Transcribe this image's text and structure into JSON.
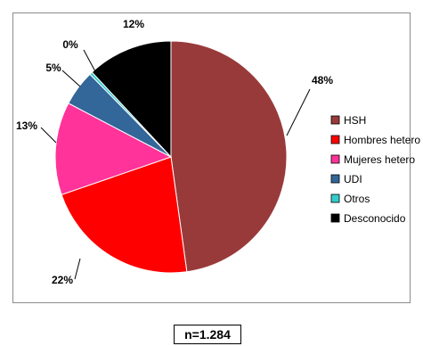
{
  "chart_data": {
    "type": "pie",
    "title": "",
    "slices": [
      {
        "name": "HSH",
        "value": 48,
        "label": "48%",
        "color": "#993a3a"
      },
      {
        "name": "Hombres hetero",
        "value": 22,
        "label": "22%",
        "color": "#ff0000"
      },
      {
        "name": "Mujeres hetero",
        "value": 13,
        "label": "13%",
        "color": "#ff3399"
      },
      {
        "name": "UDI",
        "value": 5,
        "label": "5%",
        "color": "#336699"
      },
      {
        "name": "Otros",
        "value": 0.4,
        "label": "0%",
        "color": "#33cccc"
      },
      {
        "name": "Desconocido",
        "value": 12,
        "label": "12%",
        "color": "#000000"
      }
    ],
    "legend": [
      {
        "name": "HSH",
        "color": "#993a3a"
      },
      {
        "name": "Hombres hetero",
        "color": "#ff0000"
      },
      {
        "name": "Mujeres hetero",
        "color": "#ff3399"
      },
      {
        "name": "UDI",
        "color": "#336699"
      },
      {
        "name": "Otros",
        "color": "#33cccc"
      },
      {
        "name": "Desconocido",
        "color": "#000000"
      }
    ],
    "legend_position": "right",
    "note": "n=1.284"
  }
}
